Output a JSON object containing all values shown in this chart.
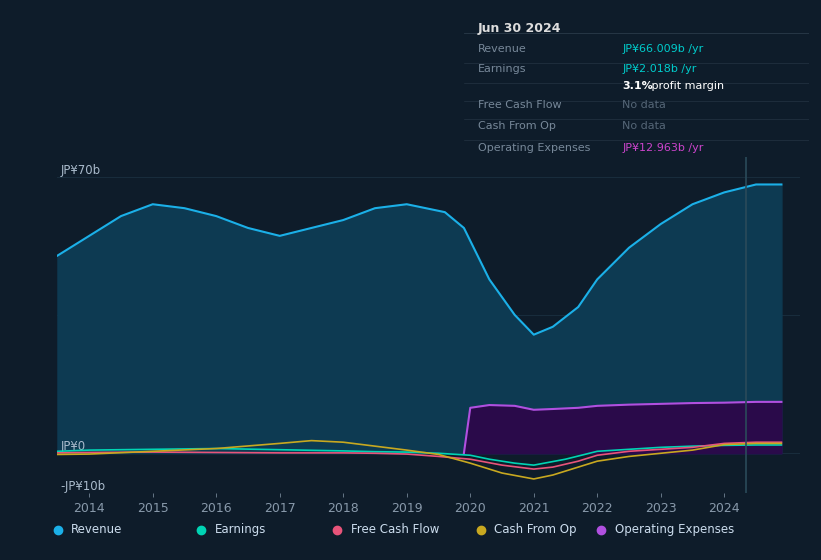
{
  "bg_color": "#0e1c2a",
  "plot_bg_color": "#0e1c2a",
  "grid_color": "#1a3040",
  "ylim": [
    -10,
    75
  ],
  "xlim": [
    2013.5,
    2025.2
  ],
  "xticks": [
    2014,
    2015,
    2016,
    2017,
    2018,
    2019,
    2020,
    2021,
    2022,
    2023,
    2024
  ],
  "revenue": {
    "x": [
      2013.5,
      2014.0,
      2014.5,
      2015.0,
      2015.5,
      2016.0,
      2016.5,
      2017.0,
      2017.5,
      2018.0,
      2018.5,
      2019.0,
      2019.3,
      2019.6,
      2019.9,
      2020.3,
      2020.7,
      2021.0,
      2021.3,
      2021.7,
      2022.0,
      2022.5,
      2023.0,
      2023.5,
      2024.0,
      2024.5,
      2024.9
    ],
    "y": [
      50,
      55,
      60,
      63,
      62,
      60,
      57,
      55,
      57,
      59,
      62,
      63,
      62,
      61,
      57,
      44,
      35,
      30,
      32,
      37,
      44,
      52,
      58,
      63,
      66,
      68,
      68
    ],
    "color": "#1bb0e8",
    "fill_color": "#0d3a52"
  },
  "earnings": {
    "x": [
      2013.5,
      2014.0,
      2015.0,
      2016.0,
      2017.0,
      2018.0,
      2018.5,
      2019.0,
      2019.5,
      2020.0,
      2020.3,
      2020.7,
      2021.0,
      2021.5,
      2022.0,
      2022.5,
      2023.0,
      2023.5,
      2024.0,
      2024.5,
      2024.9
    ],
    "y": [
      0.5,
      0.8,
      1.0,
      1.2,
      0.9,
      0.6,
      0.4,
      0.3,
      0.0,
      -0.5,
      -1.5,
      -2.5,
      -3.0,
      -1.5,
      0.5,
      1.0,
      1.5,
      1.8,
      2.0,
      2.1,
      2.1
    ],
    "color": "#00d4b4"
  },
  "free_cash_flow": {
    "x": [
      2013.5,
      2014.0,
      2015.0,
      2016.0,
      2017.0,
      2018.0,
      2018.5,
      2019.0,
      2019.5,
      2020.0,
      2020.5,
      2021.0,
      2021.3,
      2021.7,
      2022.0,
      2022.5,
      2023.0,
      2023.5,
      2024.0,
      2024.5,
      2024.9
    ],
    "y": [
      0.1,
      0.2,
      0.3,
      0.2,
      0.1,
      0.1,
      0.0,
      -0.2,
      -0.8,
      -1.5,
      -3.0,
      -4.0,
      -3.5,
      -2.0,
      -0.5,
      0.5,
      1.0,
      1.5,
      2.5,
      2.8,
      2.8
    ],
    "color": "#e8547a"
  },
  "cash_from_op": {
    "x": [
      2013.5,
      2014.0,
      2015.0,
      2016.0,
      2017.0,
      2017.5,
      2018.0,
      2018.5,
      2019.0,
      2019.5,
      2020.0,
      2020.5,
      2021.0,
      2021.3,
      2021.7,
      2022.0,
      2022.5,
      2023.0,
      2023.5,
      2024.0,
      2024.5,
      2024.9
    ],
    "y": [
      -0.3,
      -0.2,
      0.5,
      1.2,
      2.5,
      3.2,
      2.8,
      1.8,
      0.8,
      -0.3,
      -2.5,
      -5.0,
      -6.5,
      -5.5,
      -3.5,
      -2.0,
      -0.8,
      0.0,
      0.8,
      2.2,
      2.5,
      2.5
    ],
    "color": "#c8a820"
  },
  "operating_expenses": {
    "x": [
      2019.9,
      2020.0,
      2020.3,
      2020.7,
      2021.0,
      2021.3,
      2021.7,
      2022.0,
      2022.5,
      2023.0,
      2023.5,
      2024.0,
      2024.5,
      2024.9
    ],
    "y": [
      0,
      11.5,
      12.2,
      12.0,
      11.0,
      11.2,
      11.5,
      12.0,
      12.3,
      12.5,
      12.7,
      12.8,
      13.0,
      13.0
    ],
    "color": "#b050e0",
    "fill_color": "#2a0a4a"
  },
  "legend": [
    {
      "label": "Revenue",
      "color": "#1bb0e8"
    },
    {
      "label": "Earnings",
      "color": "#00d4b4"
    },
    {
      "label": "Free Cash Flow",
      "color": "#e8547a"
    },
    {
      "label": "Cash From Op",
      "color": "#c8a820"
    },
    {
      "label": "Operating Expenses",
      "color": "#b050e0"
    }
  ],
  "vline_x": 2024.35,
  "vline_color": "#2a4a5a",
  "info_box": {
    "date": "Jun 30 2024",
    "rows": [
      {
        "label": "Revenue",
        "value": "JP¥66.009b /yr",
        "value_color": "#00cccc",
        "nodata": false
      },
      {
        "label": "Earnings",
        "value": "JP¥2.018b /yr",
        "value_color": "#00cccc",
        "nodata": false
      },
      {
        "label": "",
        "value": "3.1% profit margin",
        "value_color": "#ffffff",
        "nodata": false,
        "bold_pct": true
      },
      {
        "label": "Free Cash Flow",
        "value": "No data",
        "value_color": "#556677",
        "nodata": true
      },
      {
        "label": "Cash From Op",
        "value": "No data",
        "value_color": "#556677",
        "nodata": true
      },
      {
        "label": "Operating Expenses",
        "value": "JP¥12.963b /yr",
        "value_color": "#cc44cc",
        "nodata": false
      }
    ],
    "box_bg": "#0a1520",
    "border_color": "#2a3a4a",
    "label_color": "#778899",
    "date_color": "#dddddd"
  }
}
